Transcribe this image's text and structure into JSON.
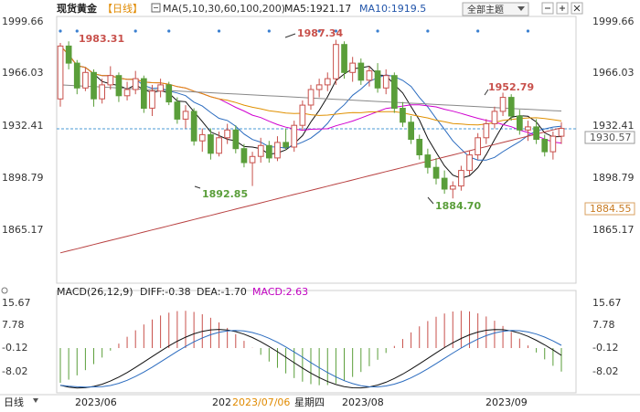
{
  "header": {
    "title": "现货黄金",
    "mode": "【日线】",
    "ma_label": "MA(5,10,30,60,100,200)",
    "ma5": "MA5:1921.17",
    "ma10": "MA10:1919.5",
    "theme_button": "全部主题"
  },
  "price_axis": {
    "left_ticks": [
      "1999.66",
      "1966.03",
      "1932.41",
      "1898.79",
      "1865.17"
    ],
    "right_ticks": [
      "1999.66",
      "1966.03",
      "1932.41",
      "1898.79",
      "1865.17"
    ],
    "last_price_box": "1930.57",
    "ma_box": "1884.55"
  },
  "macd_axis": {
    "left_ticks": [
      "15.67",
      "7.78",
      "-0.12",
      "-8.02"
    ],
    "right_ticks": [
      "15.67",
      "7.78",
      "-0.12",
      "-8.02"
    ]
  },
  "macd_header": {
    "title": "MACD(26,12,9)",
    "diff": "DIFF:-0.38",
    "dea": "DEA:-1.70",
    "macd": "MACD:2.63"
  },
  "x_axis": {
    "labels": [
      "2023/06",
      "202",
      "2023/08",
      "2023/09"
    ],
    "crosshair_date": "2023/07/06",
    "crosshair_week": "星期四"
  },
  "bottom_left": "日线",
  "annotations": {
    "high1": "1983.31",
    "high2": "1987.34",
    "low1": "1892.85",
    "low2": "1884.70",
    "high3": "1952.79"
  },
  "chart_data": {
    "type": "candlestick",
    "title": "现货黄金",
    "ylim": [
      1845,
      2010
    ],
    "candles": [
      [
        1949,
        1985,
        1944,
        1983
      ],
      [
        1983,
        1986,
        1968,
        1972
      ],
      [
        1972,
        1974,
        1952,
        1956
      ],
      [
        1956,
        1969,
        1954,
        1966
      ],
      [
        1966,
        1968,
        1944,
        1949
      ],
      [
        1949,
        1962,
        1946,
        1958
      ],
      [
        1958,
        1970,
        1955,
        1964
      ],
      [
        1964,
        1966,
        1947,
        1951
      ],
      [
        1951,
        1960,
        1948,
        1955
      ],
      [
        1955,
        1967,
        1952,
        1962
      ],
      [
        1962,
        1964,
        1940,
        1943
      ],
      [
        1943,
        1958,
        1938,
        1954
      ],
      [
        1954,
        1962,
        1950,
        1958
      ],
      [
        1958,
        1960,
        1945,
        1947
      ],
      [
        1947,
        1950,
        1933,
        1936
      ],
      [
        1936,
        1945,
        1930,
        1941
      ],
      [
        1941,
        1943,
        1919,
        1922
      ],
      [
        1922,
        1930,
        1915,
        1926
      ],
      [
        1926,
        1930,
        1910,
        1914
      ],
      [
        1914,
        1928,
        1912,
        1924
      ],
      [
        1924,
        1933,
        1920,
        1929
      ],
      [
        1929,
        1932,
        1914,
        1917
      ],
      [
        1917,
        1920,
        1905,
        1908
      ],
      [
        1908,
        1915,
        1893,
        1912
      ],
      [
        1912,
        1924,
        1908,
        1919
      ],
      [
        1919,
        1922,
        1908,
        1911
      ],
      [
        1911,
        1925,
        1909,
        1921
      ],
      [
        1921,
        1930,
        1916,
        1918
      ],
      [
        1918,
        1935,
        1915,
        1932
      ],
      [
        1932,
        1948,
        1929,
        1945
      ],
      [
        1945,
        1958,
        1942,
        1955
      ],
      [
        1955,
        1962,
        1950,
        1958
      ],
      [
        1958,
        1966,
        1954,
        1962
      ],
      [
        1962,
        1987,
        1958,
        1984
      ],
      [
        1984,
        1986,
        1962,
        1966
      ],
      [
        1966,
        1976,
        1960,
        1972
      ],
      [
        1972,
        1975,
        1958,
        1961
      ],
      [
        1961,
        1970,
        1957,
        1967
      ],
      [
        1967,
        1972,
        1953,
        1956
      ],
      [
        1956,
        1968,
        1952,
        1964
      ],
      [
        1964,
        1966,
        1940,
        1943
      ],
      [
        1943,
        1947,
        1931,
        1934
      ],
      [
        1934,
        1938,
        1920,
        1923
      ],
      [
        1923,
        1926,
        1910,
        1913
      ],
      [
        1913,
        1917,
        1901,
        1905
      ],
      [
        1905,
        1911,
        1894,
        1898
      ],
      [
        1898,
        1903,
        1888,
        1891
      ],
      [
        1891,
        1896,
        1885,
        1893
      ],
      [
        1893,
        1906,
        1890,
        1903
      ],
      [
        1903,
        1916,
        1900,
        1913
      ],
      [
        1913,
        1927,
        1910,
        1924
      ],
      [
        1924,
        1936,
        1920,
        1933
      ],
      [
        1933,
        1944,
        1930,
        1941
      ],
      [
        1941,
        1953,
        1938,
        1950
      ],
      [
        1950,
        1952,
        1935,
        1938
      ],
      [
        1938,
        1942,
        1926,
        1929
      ],
      [
        1929,
        1935,
        1922,
        1931
      ],
      [
        1931,
        1936,
        1920,
        1923
      ],
      [
        1923,
        1926,
        1912,
        1915
      ],
      [
        1915,
        1928,
        1910,
        1925
      ],
      [
        1925,
        1934,
        1920,
        1930
      ]
    ]
  }
}
